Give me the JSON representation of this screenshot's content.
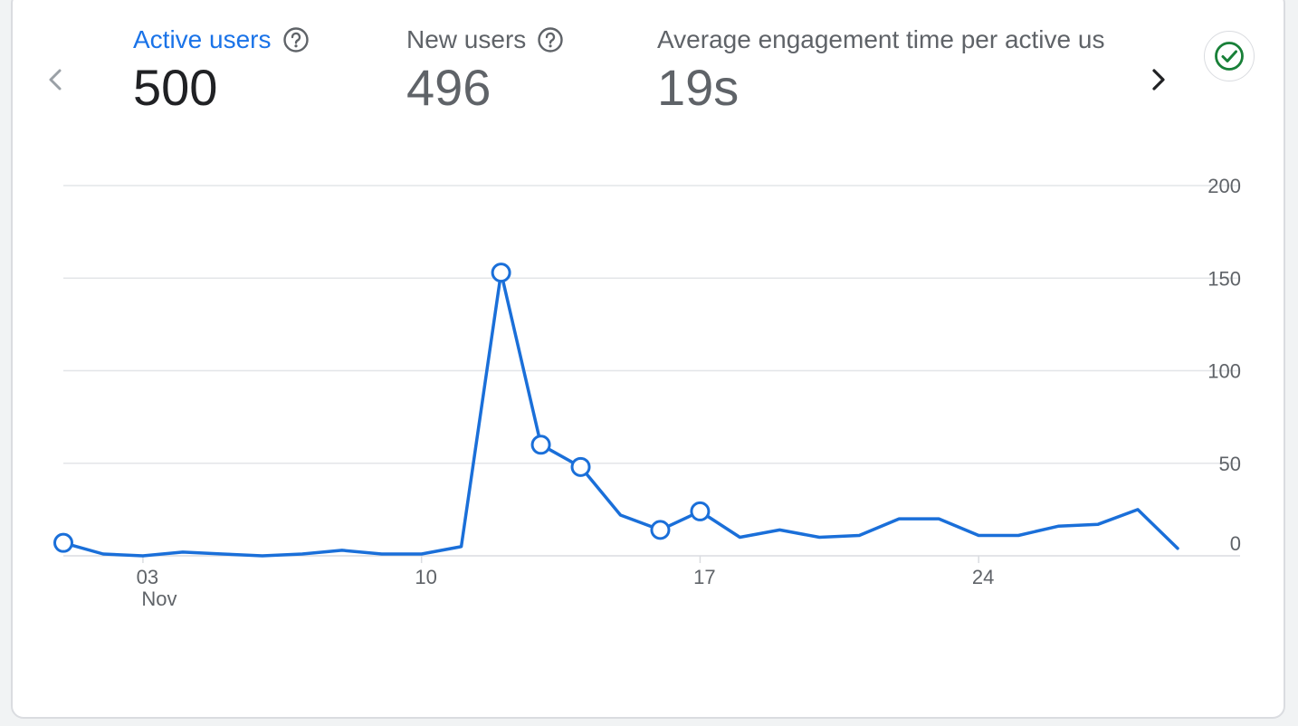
{
  "metrics": [
    {
      "label": "Active users",
      "value": "500",
      "active": true
    },
    {
      "label": "New users",
      "value": "496",
      "active": false
    },
    {
      "label": "Average engagement time per active us",
      "value": "19s",
      "active": false
    }
  ],
  "icons": {
    "prev": "chevron-left-icon",
    "next": "chevron-right-icon",
    "help": "help-circle-icon",
    "status": "check-circle-icon"
  },
  "colors": {
    "accent": "#1a73e8",
    "line": "#1a6fd9",
    "grid": "#e3e5e8",
    "status": "#188038"
  },
  "chart_data": {
    "type": "line",
    "xlabel": "",
    "ylabel": "",
    "ylim": [
      0,
      200
    ],
    "yticks": [
      0,
      50,
      100,
      150,
      200
    ],
    "y_axis_side": "right",
    "grid": true,
    "x_range": [
      1,
      29
    ],
    "x_ticks": [
      {
        "x": 3,
        "label": "03",
        "sublabel": "Nov"
      },
      {
        "x": 10,
        "label": "10"
      },
      {
        "x": 17,
        "label": "17"
      },
      {
        "x": 24,
        "label": "24"
      }
    ],
    "series": [
      {
        "x": [
          1,
          2,
          3,
          4,
          5,
          6,
          7,
          8,
          9,
          10,
          11,
          12,
          13,
          14,
          15,
          16,
          17,
          18,
          19,
          20,
          21,
          22,
          23,
          24,
          25,
          26,
          27,
          28,
          29
        ],
        "values": [
          7,
          1,
          0,
          2,
          1,
          0,
          1,
          3,
          1,
          1,
          5,
          153,
          60,
          48,
          22,
          14,
          24,
          10,
          14,
          10,
          11,
          20,
          20,
          11,
          11,
          16,
          17,
          25,
          4
        ],
        "highlighted": [
          1,
          12,
          13,
          14,
          16,
          17
        ]
      }
    ]
  }
}
